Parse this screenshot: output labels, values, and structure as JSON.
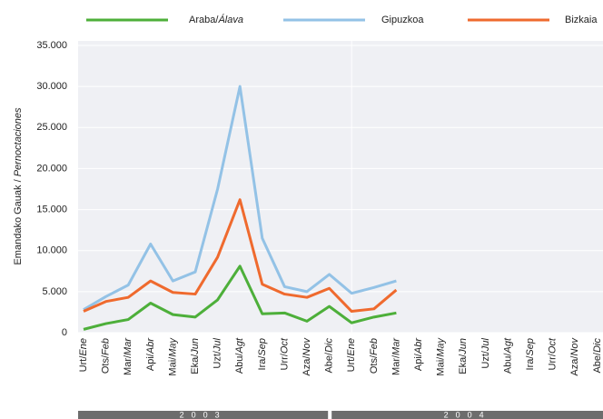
{
  "chart_data": {
    "type": "line",
    "y_label": "Emandako Gauak / Pernoctaciones",
    "categories": [
      "Urt/Ene",
      "Ots/Feb",
      "Mar/Mar",
      "Api/Abr",
      "Mai/May",
      "Eka/Jun",
      "Uzt/Jul",
      "Abu/Agt",
      "Ira/Sep",
      "Urr/Oct",
      "Aza/Nov",
      "Abe/Dic",
      "Urt/Ene",
      "Ots/Feb",
      "Mar/Mar",
      "Api/Abr",
      "Mai/May",
      "Eka/Jun",
      "Uzt/Jul",
      "Abu/Agt",
      "Ira/Sep",
      "Urr/Oct",
      "Aza/Nov",
      "Abe/Dic"
    ],
    "groups": [
      "2003",
      "2004"
    ],
    "series": [
      {
        "name": "Araba/Álava",
        "color": "#4daf3a",
        "values": [
          400,
          1100,
          1600,
          3600,
          2200,
          1900,
          4000,
          8100,
          2300,
          2400,
          1400,
          3200,
          1200,
          1900,
          2400,
          null,
          null,
          null,
          null,
          null,
          null,
          null,
          null,
          null
        ]
      },
      {
        "name": "Gipuzkoa",
        "color": "#93c2e6",
        "values": [
          2800,
          4400,
          5800,
          10800,
          6300,
          7400,
          17500,
          30000,
          11500,
          5600,
          5000,
          7100,
          4800,
          5500,
          6300,
          null,
          null,
          null,
          null,
          null,
          null,
          null,
          null,
          null
        ]
      },
      {
        "name": "Bizkaia",
        "color": "#ef6a2e",
        "values": [
          2600,
          3800,
          4300,
          6300,
          4900,
          4700,
          9200,
          16200,
          5900,
          4700,
          4300,
          5400,
          2600,
          2900,
          5200,
          null,
          null,
          null,
          null,
          null,
          null,
          null,
          null,
          null
        ]
      }
    ],
    "ylim": [
      0,
      35000
    ],
    "yticks": [
      0,
      {
        "value": 5000,
        "label": "5.000"
      },
      {
        "value": 10000,
        "label": "10.000"
      },
      {
        "value": 15000,
        "label": "15.000"
      },
      {
        "value": 20000,
        "label": "20.000"
      },
      {
        "value": 25000,
        "label": "25.000"
      },
      {
        "value": 30000,
        "label": "30.000"
      },
      {
        "value": 35000,
        "label": "35.000"
      }
    ],
    "grid": true
  }
}
